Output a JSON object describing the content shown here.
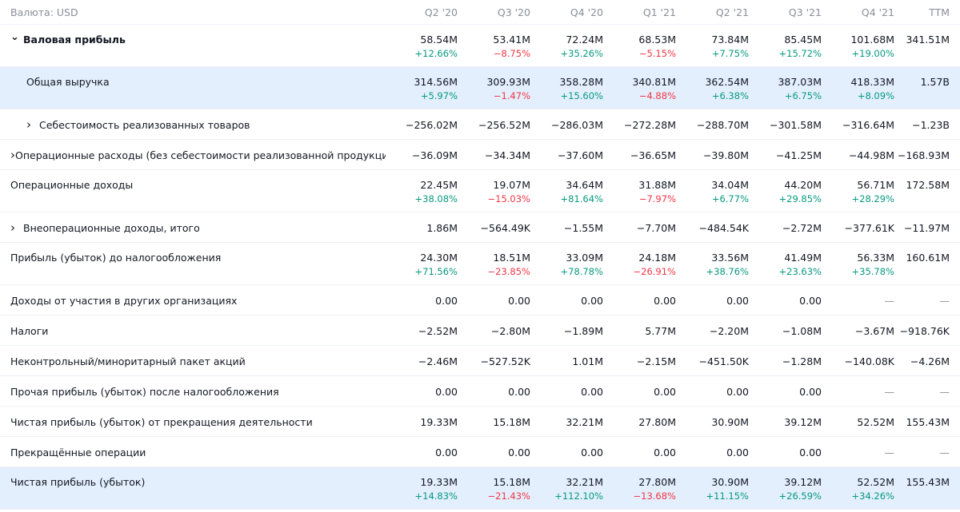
{
  "header": {
    "currency_label": "Валюта: USD",
    "periods": [
      "Q2 '20",
      "Q3 '20",
      "Q4 '20",
      "Q1 '21",
      "Q2 '21",
      "Q3 '21",
      "Q4 '21",
      "TTM"
    ]
  },
  "rows": [
    {
      "label": "Валовая прибыль",
      "bold": true,
      "expanded": true,
      "chevron": "down",
      "indent": 0,
      "highlight": false,
      "values": [
        "58.54M",
        "53.41M",
        "72.24M",
        "68.53M",
        "73.84M",
        "85.45M",
        "101.68M",
        "341.51M"
      ],
      "changes": [
        "+12.66%",
        "−8.75%",
        "+35.26%",
        "−5.15%",
        "+7.75%",
        "+15.72%",
        "+19.00%",
        ""
      ]
    },
    {
      "label": "Общая выручка",
      "bold": false,
      "chevron": "",
      "indent": 1,
      "highlight": true,
      "values": [
        "314.56M",
        "309.93M",
        "358.28M",
        "340.81M",
        "362.54M",
        "387.03M",
        "418.33M",
        "1.57B"
      ],
      "changes": [
        "+5.97%",
        "−1.47%",
        "+15.60%",
        "−4.88%",
        "+6.38%",
        "+6.75%",
        "+8.09%",
        ""
      ]
    },
    {
      "label": "Себестоимость реализованных товаров",
      "bold": false,
      "chevron": "right",
      "indent": 1,
      "highlight": false,
      "values": [
        "−256.02M",
        "−256.52M",
        "−286.03M",
        "−272.28M",
        "−288.70M",
        "−301.58M",
        "−316.64M",
        "−1.23B"
      ],
      "changes": []
    },
    {
      "label": "Операционные расходы (без себестоимости реализованной продукции)",
      "bold": false,
      "chevron": "right",
      "indent": 0,
      "highlight": false,
      "values": [
        "−36.09M",
        "−34.34M",
        "−37.60M",
        "−36.65M",
        "−39.80M",
        "−41.25M",
        "−44.98M",
        "−168.93M"
      ],
      "changes": []
    },
    {
      "label": "Операционные доходы",
      "bold": false,
      "chevron": "",
      "indent": 0,
      "highlight": false,
      "values": [
        "22.45M",
        "19.07M",
        "34.64M",
        "31.88M",
        "34.04M",
        "44.20M",
        "56.71M",
        "172.58M"
      ],
      "changes": [
        "+38.08%",
        "−15.03%",
        "+81.64%",
        "−7.97%",
        "+6.77%",
        "+29.85%",
        "+28.29%",
        ""
      ]
    },
    {
      "label": "Внеоперационные доходы, итого",
      "bold": false,
      "chevron": "right",
      "indent": 0,
      "highlight": false,
      "values": [
        "1.86M",
        "−564.49K",
        "−1.55M",
        "−7.70M",
        "−484.54K",
        "−2.72M",
        "−377.61K",
        "−11.97M"
      ],
      "changes": []
    },
    {
      "label": "Прибыль (убыток) до налогообложения",
      "bold": false,
      "chevron": "",
      "indent": 0,
      "highlight": false,
      "values": [
        "24.30M",
        "18.51M",
        "33.09M",
        "24.18M",
        "33.56M",
        "41.49M",
        "56.33M",
        "160.61M"
      ],
      "changes": [
        "+71.56%",
        "−23.85%",
        "+78.78%",
        "−26.91%",
        "+38.76%",
        "+23.63%",
        "+35.78%",
        ""
      ]
    },
    {
      "label": "Доходы от участия в других организациях",
      "bold": false,
      "chevron": "",
      "indent": 0,
      "highlight": false,
      "values": [
        "0.00",
        "0.00",
        "0.00",
        "0.00",
        "0.00",
        "0.00",
        "—",
        "—"
      ],
      "changes": []
    },
    {
      "label": "Налоги",
      "bold": false,
      "chevron": "",
      "indent": 0,
      "highlight": false,
      "values": [
        "−2.52M",
        "−2.80M",
        "−1.89M",
        "5.77M",
        "−2.20M",
        "−1.08M",
        "−3.67M",
        "−918.76K"
      ],
      "changes": []
    },
    {
      "label": "Неконтрольный/миноритарный пакет акций",
      "bold": false,
      "chevron": "",
      "indent": 0,
      "highlight": false,
      "values": [
        "−2.46M",
        "−527.52K",
        "1.01M",
        "−2.15M",
        "−451.50K",
        "−1.28M",
        "−140.08K",
        "−4.26M"
      ],
      "changes": []
    },
    {
      "label": "Прочая прибыль (убыток) после налогообложения",
      "bold": false,
      "chevron": "",
      "indent": 0,
      "highlight": false,
      "values": [
        "0.00",
        "0.00",
        "0.00",
        "0.00",
        "0.00",
        "0.00",
        "—",
        "—"
      ],
      "changes": []
    },
    {
      "label": "Чистая прибыль (убыток) от прекращения деятельности",
      "bold": false,
      "chevron": "",
      "indent": 0,
      "highlight": false,
      "values": [
        "19.33M",
        "15.18M",
        "32.21M",
        "27.80M",
        "30.90M",
        "39.12M",
        "52.52M",
        "155.43M"
      ],
      "changes": []
    },
    {
      "label": "Прекращённые операции",
      "bold": false,
      "chevron": "",
      "indent": 0,
      "highlight": false,
      "values": [
        "0.00",
        "0.00",
        "0.00",
        "0.00",
        "0.00",
        "0.00",
        "—",
        "—"
      ],
      "changes": []
    },
    {
      "label": "Чистая прибыль (убыток)",
      "bold": false,
      "chevron": "",
      "indent": 0,
      "highlight": true,
      "values": [
        "19.33M",
        "15.18M",
        "32.21M",
        "27.80M",
        "30.90M",
        "39.12M",
        "52.52M",
        "155.43M"
      ],
      "changes": [
        "+14.83%",
        "−21.43%",
        "+112.10%",
        "−13.68%",
        "+11.15%",
        "+26.59%",
        "+34.26%",
        ""
      ]
    }
  ],
  "colors": {
    "positive": "#089981",
    "negative": "#f23645",
    "highlight_row": "#e3effd",
    "muted_text": "#8a8e99"
  },
  "icons": {
    "down": "chevron-down-icon",
    "right": "chevron-right-icon"
  }
}
